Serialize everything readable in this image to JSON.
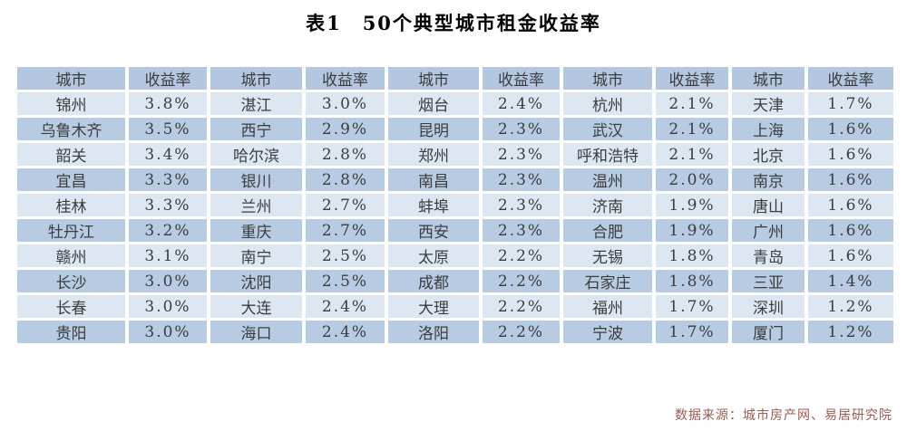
{
  "title": "表1　50个典型城市租金收益率",
  "table": {
    "col_headers": [
      "城市",
      "收益率",
      "城市",
      "收益率",
      "城市",
      "收益率",
      "城市",
      "收益率",
      "城市",
      "收益率"
    ],
    "rows": [
      [
        "锦州",
        "3.8%",
        "湛江",
        "3.0%",
        "烟台",
        "2.4%",
        "杭州",
        "2.1%",
        "天津",
        "1.7%"
      ],
      [
        "乌鲁木齐",
        "3.5%",
        "西宁",
        "2.9%",
        "昆明",
        "2.3%",
        "武汉",
        "2.1%",
        "上海",
        "1.6%"
      ],
      [
        "韶关",
        "3.4%",
        "哈尔滨",
        "2.8%",
        "郑州",
        "2.3%",
        "呼和浩特",
        "2.1%",
        "北京",
        "1.6%"
      ],
      [
        "宜昌",
        "3.3%",
        "银川",
        "2.8%",
        "南昌",
        "2.3%",
        "温州",
        "2.0%",
        "南京",
        "1.6%"
      ],
      [
        "桂林",
        "3.3%",
        "兰州",
        "2.7%",
        "蚌埠",
        "2.3%",
        "济南",
        "1.9%",
        "唐山",
        "1.6%"
      ],
      [
        "牡丹江",
        "3.2%",
        "重庆",
        "2.7%",
        "西安",
        "2.3%",
        "合肥",
        "1.9%",
        "广州",
        "1.6%"
      ],
      [
        "赣州",
        "3.1%",
        "南宁",
        "2.5%",
        "太原",
        "2.2%",
        "无锡",
        "1.8%",
        "青岛",
        "1.6%"
      ],
      [
        "长沙",
        "3.0%",
        "沈阳",
        "2.5%",
        "成都",
        "2.2%",
        "石家庄",
        "1.8%",
        "三亚",
        "1.4%"
      ],
      [
        "长春",
        "3.0%",
        "大连",
        "2.4%",
        "大理",
        "2.2%",
        "福州",
        "1.7%",
        "深圳",
        "1.2%"
      ],
      [
        "贵阳",
        "3.0%",
        "海口",
        "2.4%",
        "洛阳",
        "2.2%",
        "宁波",
        "1.7%",
        "厦门",
        "1.2%"
      ]
    ]
  },
  "source_note": "数据来源：城市房产网、易居研究院",
  "colors": {
    "header_bg": "#b3c8e0",
    "row_even_bg": "#b7cce3",
    "row_odd_bg": "#dde7f2",
    "table_text": "#3c3c3c",
    "title_text": "#000000",
    "source_text": "#9a5c50"
  }
}
